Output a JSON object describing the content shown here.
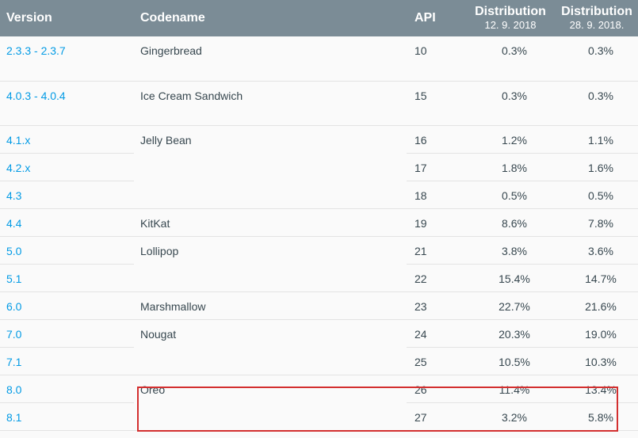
{
  "header": {
    "version": "Version",
    "codename": "Codename",
    "api": "API",
    "dist1_title": "Distribution",
    "dist1_date": "12. 9. 2018",
    "dist2_title": "Distribution",
    "dist2_date": "28. 9. 2018."
  },
  "rows": [
    {
      "version": "2.3.3 - 2.3.7",
      "codename": "Gingerbread",
      "api": "10",
      "d1": "0.3%",
      "d2": "0.3%"
    },
    {
      "version": "4.0.3 - 4.0.4",
      "codename": "Ice Cream Sandwich",
      "api": "15",
      "d1": "0.3%",
      "d2": "0.3%"
    },
    {
      "version": "4.1.x",
      "codename": "Jelly Bean",
      "api": "16",
      "d1": "1.2%",
      "d2": "1.1%"
    },
    {
      "version": "4.2.x",
      "codename": "",
      "api": "17",
      "d1": "1.8%",
      "d2": "1.6%"
    },
    {
      "version": "4.3",
      "codename": "",
      "api": "18",
      "d1": "0.5%",
      "d2": "0.5%"
    },
    {
      "version": "4.4",
      "codename": "KitKat",
      "api": "19",
      "d1": "8.6%",
      "d2": "7.8%"
    },
    {
      "version": "5.0",
      "codename": "Lollipop",
      "api": "21",
      "d1": "3.8%",
      "d2": "3.6%"
    },
    {
      "version": "5.1",
      "codename": "",
      "api": "22",
      "d1": "15.4%",
      "d2": "14.7%"
    },
    {
      "version": "6.0",
      "codename": "Marshmallow",
      "api": "23",
      "d1": "22.7%",
      "d2": "21.6%"
    },
    {
      "version": "7.0",
      "codename": "Nougat",
      "api": "24",
      "d1": "20.3%",
      "d2": "19.0%"
    },
    {
      "version": "7.1",
      "codename": "",
      "api": "25",
      "d1": "10.5%",
      "d2": "10.3%"
    },
    {
      "version": "8.0",
      "codename": "Oreo",
      "api": "26",
      "d1": "11.4%",
      "d2": "13.4%"
    },
    {
      "version": "8.1",
      "codename": "",
      "api": "27",
      "d1": "3.2%",
      "d2": "5.8%"
    }
  ],
  "colors": {
    "header_bg": "#7b8c96",
    "link": "#039be5",
    "highlight_border": "#d32f2f"
  }
}
